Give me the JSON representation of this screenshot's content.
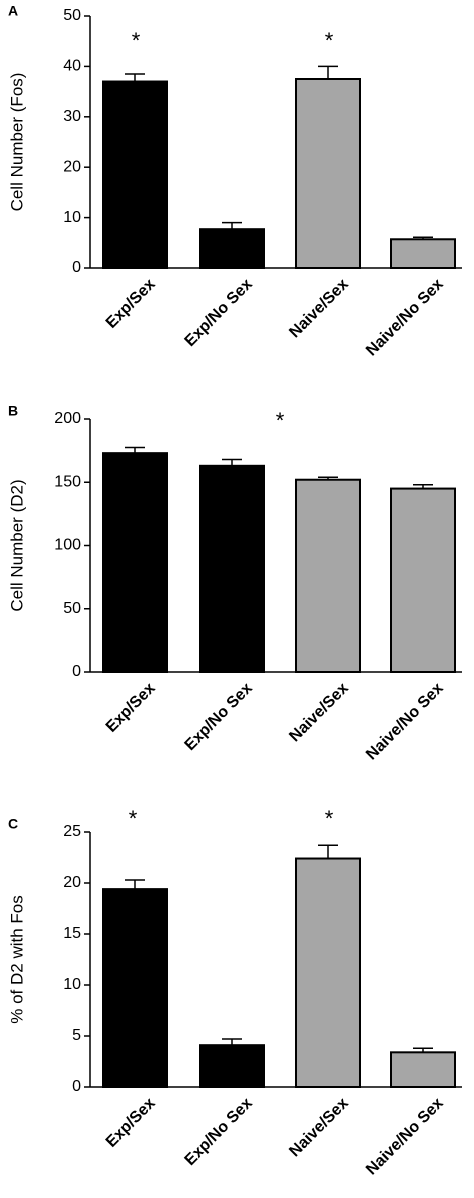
{
  "chart_data": [
    {
      "type": "bar",
      "panel_label": "A",
      "y_label": "Cell Number (Fos)",
      "categories": [
        "Exp/Sex",
        "Exp/No Sex",
        "Naive/Sex",
        "Naive/No Sex"
      ],
      "values": [
        37,
        7.7,
        37.5,
        5.7
      ],
      "errors": [
        1.5,
        1.3,
        2.5,
        0.4
      ],
      "colors": [
        "#000000",
        "#000000",
        "#a6a6a6",
        "#a6a6a6"
      ],
      "ylim": [
        0,
        50
      ],
      "yticks": [
        0,
        10,
        20,
        30,
        40,
        50
      ],
      "annotations": [
        {
          "text": "*"
        },
        {
          "text": "*"
        }
      ]
    },
    {
      "type": "bar",
      "panel_label": "B",
      "y_label": "Cell Number  (D2)",
      "categories": [
        "Exp/Sex",
        "Exp/No Sex",
        "Naive/Sex",
        "Naive/No Sex"
      ],
      "values": [
        173,
        163,
        152,
        145
      ],
      "errors": [
        4.5,
        5,
        2,
        3
      ],
      "colors": [
        "#000000",
        "#000000",
        "#a6a6a6",
        "#a6a6a6"
      ],
      "ylim": [
        0,
        200
      ],
      "yticks": [
        0,
        50,
        100,
        150,
        200
      ],
      "annotations": [
        {
          "text": "*"
        }
      ]
    },
    {
      "type": "bar",
      "panel_label": "C",
      "y_label": "% of D2 with Fos",
      "categories": [
        "Exp/Sex",
        "Exp/No Sex",
        "Naive/Sex",
        "Naive/No Sex"
      ],
      "values": [
        19.4,
        4.1,
        22.4,
        3.4
      ],
      "errors": [
        0.9,
        0.6,
        1.3,
        0.4
      ],
      "colors": [
        "#000000",
        "#000000",
        "#a6a6a6",
        "#a6a6a6"
      ],
      "ylim": [
        0,
        25
      ],
      "yticks": [
        0,
        5,
        10,
        15,
        20,
        25
      ],
      "annotations": [
        {
          "text": "*"
        },
        {
          "text": "*"
        }
      ]
    }
  ]
}
